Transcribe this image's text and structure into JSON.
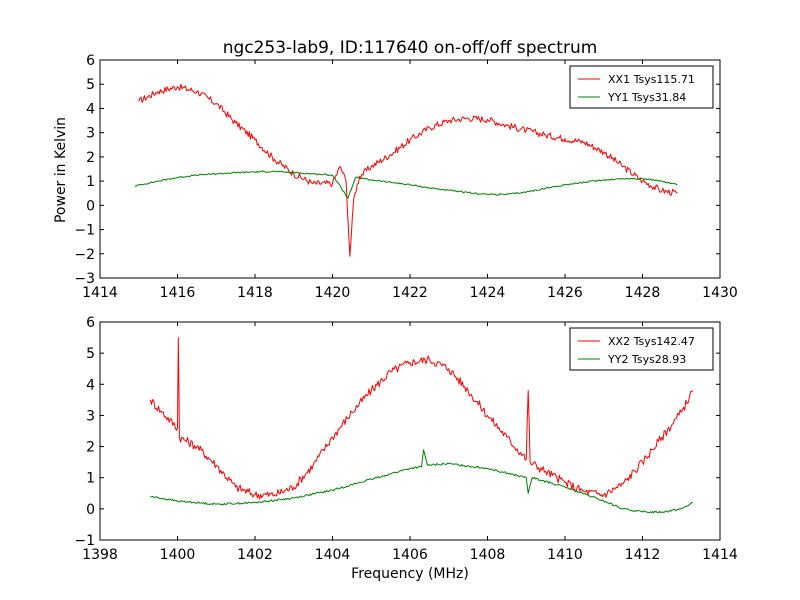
{
  "figure": {
    "title": "ngc253-lab9, ID:117640 on-off/off spectrum",
    "ylabel": "Power in Kelvin",
    "xlabel": "Frequency (MHz)"
  },
  "chart_data": [
    {
      "type": "line",
      "xlim": [
        1414,
        1430
      ],
      "ylim": [
        -3,
        6
      ],
      "xticks": [
        1414,
        1416,
        1418,
        1420,
        1422,
        1424,
        1426,
        1428,
        1430
      ],
      "yticks": [
        -3,
        -2,
        -1,
        0,
        1,
        2,
        3,
        4,
        5,
        6
      ],
      "grid": false,
      "legend_position": "top-right",
      "series": [
        {
          "name": "XX1 Tsys115.71",
          "color": "#ff0000",
          "x": [
            1415.0,
            1415.5,
            1416.0,
            1416.5,
            1417.0,
            1417.5,
            1418.0,
            1418.5,
            1419.0,
            1419.5,
            1420.0,
            1420.2,
            1420.35,
            1420.45,
            1420.55,
            1420.7,
            1421.0,
            1421.5,
            1422.0,
            1422.5,
            1423.0,
            1423.5,
            1424.0,
            1424.5,
            1425.0,
            1425.5,
            1426.0,
            1426.5,
            1427.0,
            1427.5,
            1428.0,
            1428.5,
            1428.9
          ],
          "y": [
            4.3,
            4.7,
            4.9,
            4.7,
            4.2,
            3.4,
            2.7,
            1.9,
            1.3,
            0.9,
            0.9,
            1.6,
            1.0,
            -2.1,
            0.3,
            1.2,
            1.6,
            2.1,
            2.7,
            3.2,
            3.5,
            3.6,
            3.55,
            3.3,
            3.1,
            2.9,
            2.75,
            2.6,
            2.2,
            1.6,
            1.0,
            0.6,
            0.5
          ]
        },
        {
          "name": "YY1 Tsys31.84",
          "color": "#008000",
          "x": [
            1414.9,
            1415.5,
            1416.0,
            1416.5,
            1417.0,
            1417.5,
            1418.0,
            1418.5,
            1419.0,
            1419.5,
            1420.0,
            1420.4,
            1420.6,
            1421.0,
            1421.5,
            1422.0,
            1422.5,
            1423.0,
            1423.5,
            1424.0,
            1424.5,
            1425.0,
            1425.5,
            1426.0,
            1426.5,
            1427.0,
            1427.5,
            1428.0,
            1428.5,
            1428.9
          ],
          "y": [
            0.8,
            1.0,
            1.15,
            1.25,
            1.3,
            1.35,
            1.38,
            1.4,
            1.35,
            1.3,
            1.25,
            0.3,
            1.15,
            1.05,
            0.95,
            0.85,
            0.72,
            0.62,
            0.52,
            0.45,
            0.45,
            0.55,
            0.7,
            0.85,
            0.95,
            1.05,
            1.1,
            1.1,
            1.0,
            0.85
          ]
        }
      ]
    },
    {
      "type": "line",
      "xlim": [
        1398,
        1414
      ],
      "ylim": [
        -1,
        6
      ],
      "xticks": [
        1398,
        1400,
        1402,
        1404,
        1406,
        1408,
        1410,
        1412,
        1414
      ],
      "yticks": [
        -1,
        0,
        1,
        2,
        3,
        4,
        5,
        6
      ],
      "grid": false,
      "legend_position": "top-right",
      "series": [
        {
          "name": "XX2 Tsys142.47",
          "color": "#ff0000",
          "x": [
            1399.3,
            1399.6,
            1400.0,
            1400.02,
            1400.05,
            1400.5,
            1401.0,
            1401.5,
            1402.0,
            1402.5,
            1403.0,
            1403.5,
            1404.0,
            1404.5,
            1405.0,
            1405.5,
            1406.0,
            1406.5,
            1407.0,
            1407.5,
            1408.0,
            1408.5,
            1409.0,
            1409.05,
            1409.1,
            1409.5,
            1410.0,
            1410.5,
            1411.0,
            1411.5,
            1412.0,
            1412.5,
            1413.0,
            1413.3
          ],
          "y": [
            3.5,
            3.1,
            2.6,
            5.5,
            2.3,
            2.0,
            1.4,
            0.7,
            0.45,
            0.45,
            0.7,
            1.4,
            2.3,
            3.1,
            3.8,
            4.4,
            4.7,
            4.8,
            4.5,
            3.8,
            3.0,
            2.3,
            1.6,
            3.8,
            1.5,
            1.2,
            0.85,
            0.55,
            0.45,
            0.8,
            1.5,
            2.3,
            3.1,
            3.8
          ]
        },
        {
          "name": "YY2 Tsys28.93",
          "color": "#008000",
          "x": [
            1399.3,
            1400.0,
            1401.0,
            1402.0,
            1403.0,
            1404.0,
            1405.0,
            1406.0,
            1406.3,
            1406.35,
            1406.45,
            1407.0,
            1408.0,
            1409.0,
            1409.05,
            1409.15,
            1410.0,
            1411.0,
            1411.5,
            1412.0,
            1412.5,
            1413.0,
            1413.3
          ],
          "y": [
            0.4,
            0.25,
            0.15,
            0.2,
            0.35,
            0.6,
            0.95,
            1.3,
            1.35,
            1.9,
            1.4,
            1.45,
            1.3,
            1.0,
            0.5,
            1.0,
            0.7,
            0.25,
            0.0,
            -0.1,
            -0.1,
            0.0,
            0.2
          ]
        }
      ]
    }
  ]
}
